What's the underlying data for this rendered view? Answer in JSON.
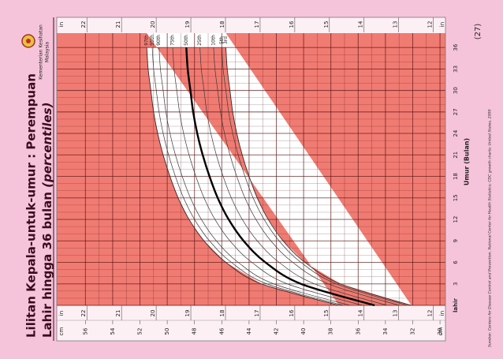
{
  "chart_data": {
    "type": "line",
    "title": "Lilitan Kepala-untuk-umur : Perempuan",
    "subtitle": "Lahir hingga 36 bulan",
    "subtitle_note": "(percentiles)",
    "ministry": [
      "Kementerian Kesihatan",
      "Malaysia"
    ],
    "page_number": "(27)",
    "source": "Sumber:  Centers for Disease Control and Prevention, National Center for Health Statistics: CDC growth charts: United States, 2000",
    "x_label": "Umur (Bulan)",
    "x": [
      0,
      3,
      6,
      9,
      12,
      15,
      18,
      21,
      24,
      27,
      30,
      33,
      36
    ],
    "xlim": [
      0,
      38
    ],
    "xticks": [
      {
        "value": 0,
        "label": "lahir"
      },
      3,
      6,
      9,
      12,
      15,
      18,
      21,
      24,
      27,
      30,
      33,
      36
    ],
    "ylim": [
      29.6,
      58.1
    ],
    "yticks": [
      30,
      32,
      34,
      36,
      38,
      40,
      42,
      44,
      46,
      48,
      50,
      52,
      54,
      56
    ],
    "y_unit": "cm",
    "y2lim": [
      11.65,
      22.87
    ],
    "y2ticks": [
      12,
      13,
      14,
      15,
      16,
      17,
      18,
      19,
      20,
      21,
      22
    ],
    "y2_unit": "in",
    "grid": true,
    "plot_color": "#f07b72",
    "band_color": "#ffffff",
    "series": [
      {
        "name": "3rd",
        "color": "#3a2a2a",
        "width": 0.9,
        "values": [
          32.1,
          37.3,
          39.9,
          41.5,
          42.6,
          43.4,
          44.0,
          44.5,
          44.9,
          45.2,
          45.4,
          45.6,
          45.7
        ]
      },
      {
        "name": "5th",
        "color": "#3a3a3a",
        "width": 0.7,
        "values": [
          32.4,
          37.6,
          40.2,
          41.8,
          42.9,
          43.7,
          44.3,
          44.8,
          45.2,
          45.5,
          45.7,
          45.9,
          46.0
        ]
      },
      {
        "name": "10th",
        "color": "#3a3a3a",
        "width": 0.7,
        "values": [
          33.0,
          38.2,
          40.8,
          42.4,
          43.5,
          44.3,
          44.9,
          45.4,
          45.8,
          46.1,
          46.3,
          46.5,
          46.6
        ]
      },
      {
        "name": "25th",
        "color": "#3a3a3a",
        "width": 0.7,
        "values": [
          33.9,
          39.2,
          41.8,
          43.4,
          44.5,
          45.3,
          45.9,
          46.4,
          46.8,
          47.1,
          47.3,
          47.5,
          47.6
        ]
      },
      {
        "name": "50th",
        "color": "#000000",
        "width": 2.4,
        "values": [
          34.8,
          40.2,
          42.8,
          44.4,
          45.5,
          46.3,
          46.9,
          47.4,
          47.8,
          48.1,
          48.3,
          48.5,
          48.6
        ]
      },
      {
        "name": "75th",
        "color": "#3a3a3a",
        "width": 0.7,
        "values": [
          35.7,
          41.2,
          43.8,
          45.4,
          46.5,
          47.3,
          47.9,
          48.4,
          48.8,
          49.1,
          49.3,
          49.5,
          49.6
        ]
      },
      {
        "name": "90th",
        "color": "#3a3a3a",
        "width": 0.7,
        "values": [
          36.6,
          42.2,
          44.8,
          46.4,
          47.5,
          48.3,
          48.9,
          49.4,
          49.8,
          50.1,
          50.3,
          50.5,
          50.6
        ]
      },
      {
        "name": "95th",
        "color": "#3a3a3a",
        "width": 0.7,
        "values": [
          37.1,
          42.7,
          45.3,
          46.9,
          48.0,
          48.8,
          49.4,
          49.9,
          50.3,
          50.6,
          50.8,
          51.0,
          51.1
        ]
      },
      {
        "name": "97th",
        "color": "#3a2a2a",
        "width": 0.9,
        "values": [
          37.4,
          43.1,
          45.7,
          47.3,
          48.4,
          49.2,
          49.8,
          50.3,
          50.7,
          51.0,
          51.2,
          51.4,
          51.5
        ]
      }
    ]
  }
}
